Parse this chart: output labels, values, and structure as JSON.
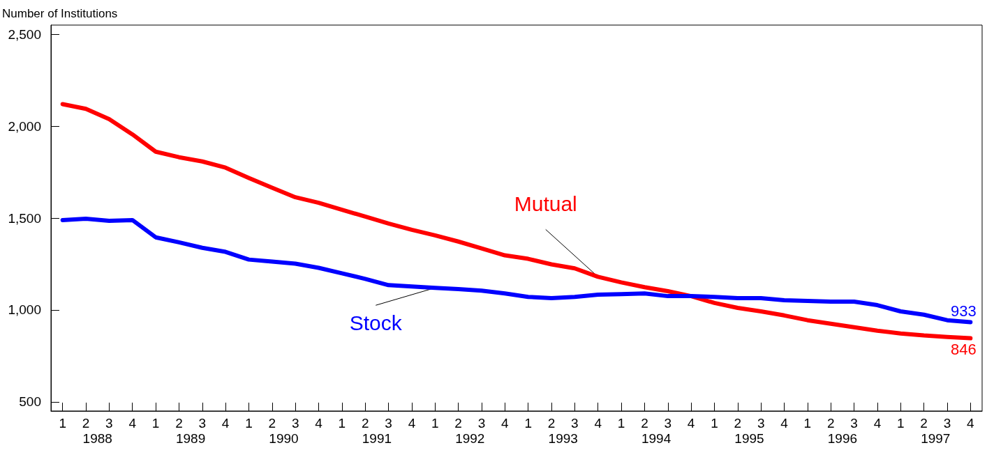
{
  "chart_data": {
    "type": "line",
    "ylabel": "Number of Institutions",
    "categories": [
      "1",
      "2",
      "3",
      "4",
      "1",
      "2",
      "3",
      "4",
      "1",
      "2",
      "3",
      "4",
      "1",
      "2",
      "3",
      "4",
      "1",
      "2",
      "3",
      "4",
      "1",
      "2",
      "3",
      "4",
      "1",
      "2",
      "3",
      "4",
      "1",
      "2",
      "3",
      "4",
      "1",
      "2",
      "3",
      "4",
      "1",
      "2",
      "3",
      "4"
    ],
    "annotations": [
      "1988",
      "1989",
      "1990",
      "1991",
      "1992",
      "1993",
      "1994",
      "1995",
      "1996",
      "1997"
    ],
    "series": [
      {
        "name": "Mutual",
        "color": "#ff0000",
        "values": [
          2120,
          2094,
          2038,
          1955,
          1861,
          1831,
          1808,
          1774,
          1718,
          1665,
          1613,
          1583,
          1545,
          1508,
          1470,
          1436,
          1406,
          1372,
          1335,
          1297,
          1278,
          1248,
          1226,
          1180,
          1150,
          1124,
          1102,
          1075,
          1038,
          1011,
          992,
          970,
          944,
          925,
          906,
          887,
          872,
          861,
          853,
          846
        ],
        "value_labels": [
          null,
          null,
          null,
          null,
          null,
          null,
          null,
          null,
          null,
          null,
          null,
          null,
          null,
          null,
          null,
          null,
          null,
          null,
          null,
          null,
          null,
          null,
          null,
          null,
          null,
          null,
          null,
          null,
          null,
          null,
          null,
          null,
          null,
          null,
          null,
          null,
          null,
          null,
          null,
          "846"
        ]
      },
      {
        "name": "Stock",
        "color": "#0000ff",
        "values": [
          1489,
          1496,
          1485,
          1489,
          1395,
          1368,
          1338,
          1316,
          1274,
          1263,
          1252,
          1229,
          1199,
          1169,
          1135,
          1128,
          1120,
          1113,
          1105,
          1090,
          1071,
          1064,
          1071,
          1083,
          1086,
          1090,
          1075,
          1075,
          1071,
          1064,
          1064,
          1053,
          1049,
          1045,
          1045,
          1026,
          992,
          974,
          944,
          933
        ],
        "value_labels": [
          null,
          null,
          null,
          null,
          null,
          null,
          null,
          null,
          null,
          null,
          null,
          null,
          null,
          null,
          null,
          null,
          null,
          null,
          null,
          null,
          null,
          null,
          null,
          null,
          null,
          null,
          null,
          null,
          null,
          null,
          null,
          null,
          null,
          null,
          null,
          null,
          null,
          null,
          null,
          "933"
        ]
      }
    ],
    "ylim": [
      450,
      2550
    ],
    "yticks": [
      {
        "value": 500,
        "label": "500"
      },
      {
        "value": 1000,
        "label": "1,000"
      },
      {
        "value": 1500,
        "label": "1,500"
      },
      {
        "value": 2000,
        "label": "2,000"
      },
      {
        "value": 2500,
        "label": "2,500"
      }
    ],
    "grid": false,
    "legend": false,
    "marker": "none",
    "line_style": "solid"
  }
}
